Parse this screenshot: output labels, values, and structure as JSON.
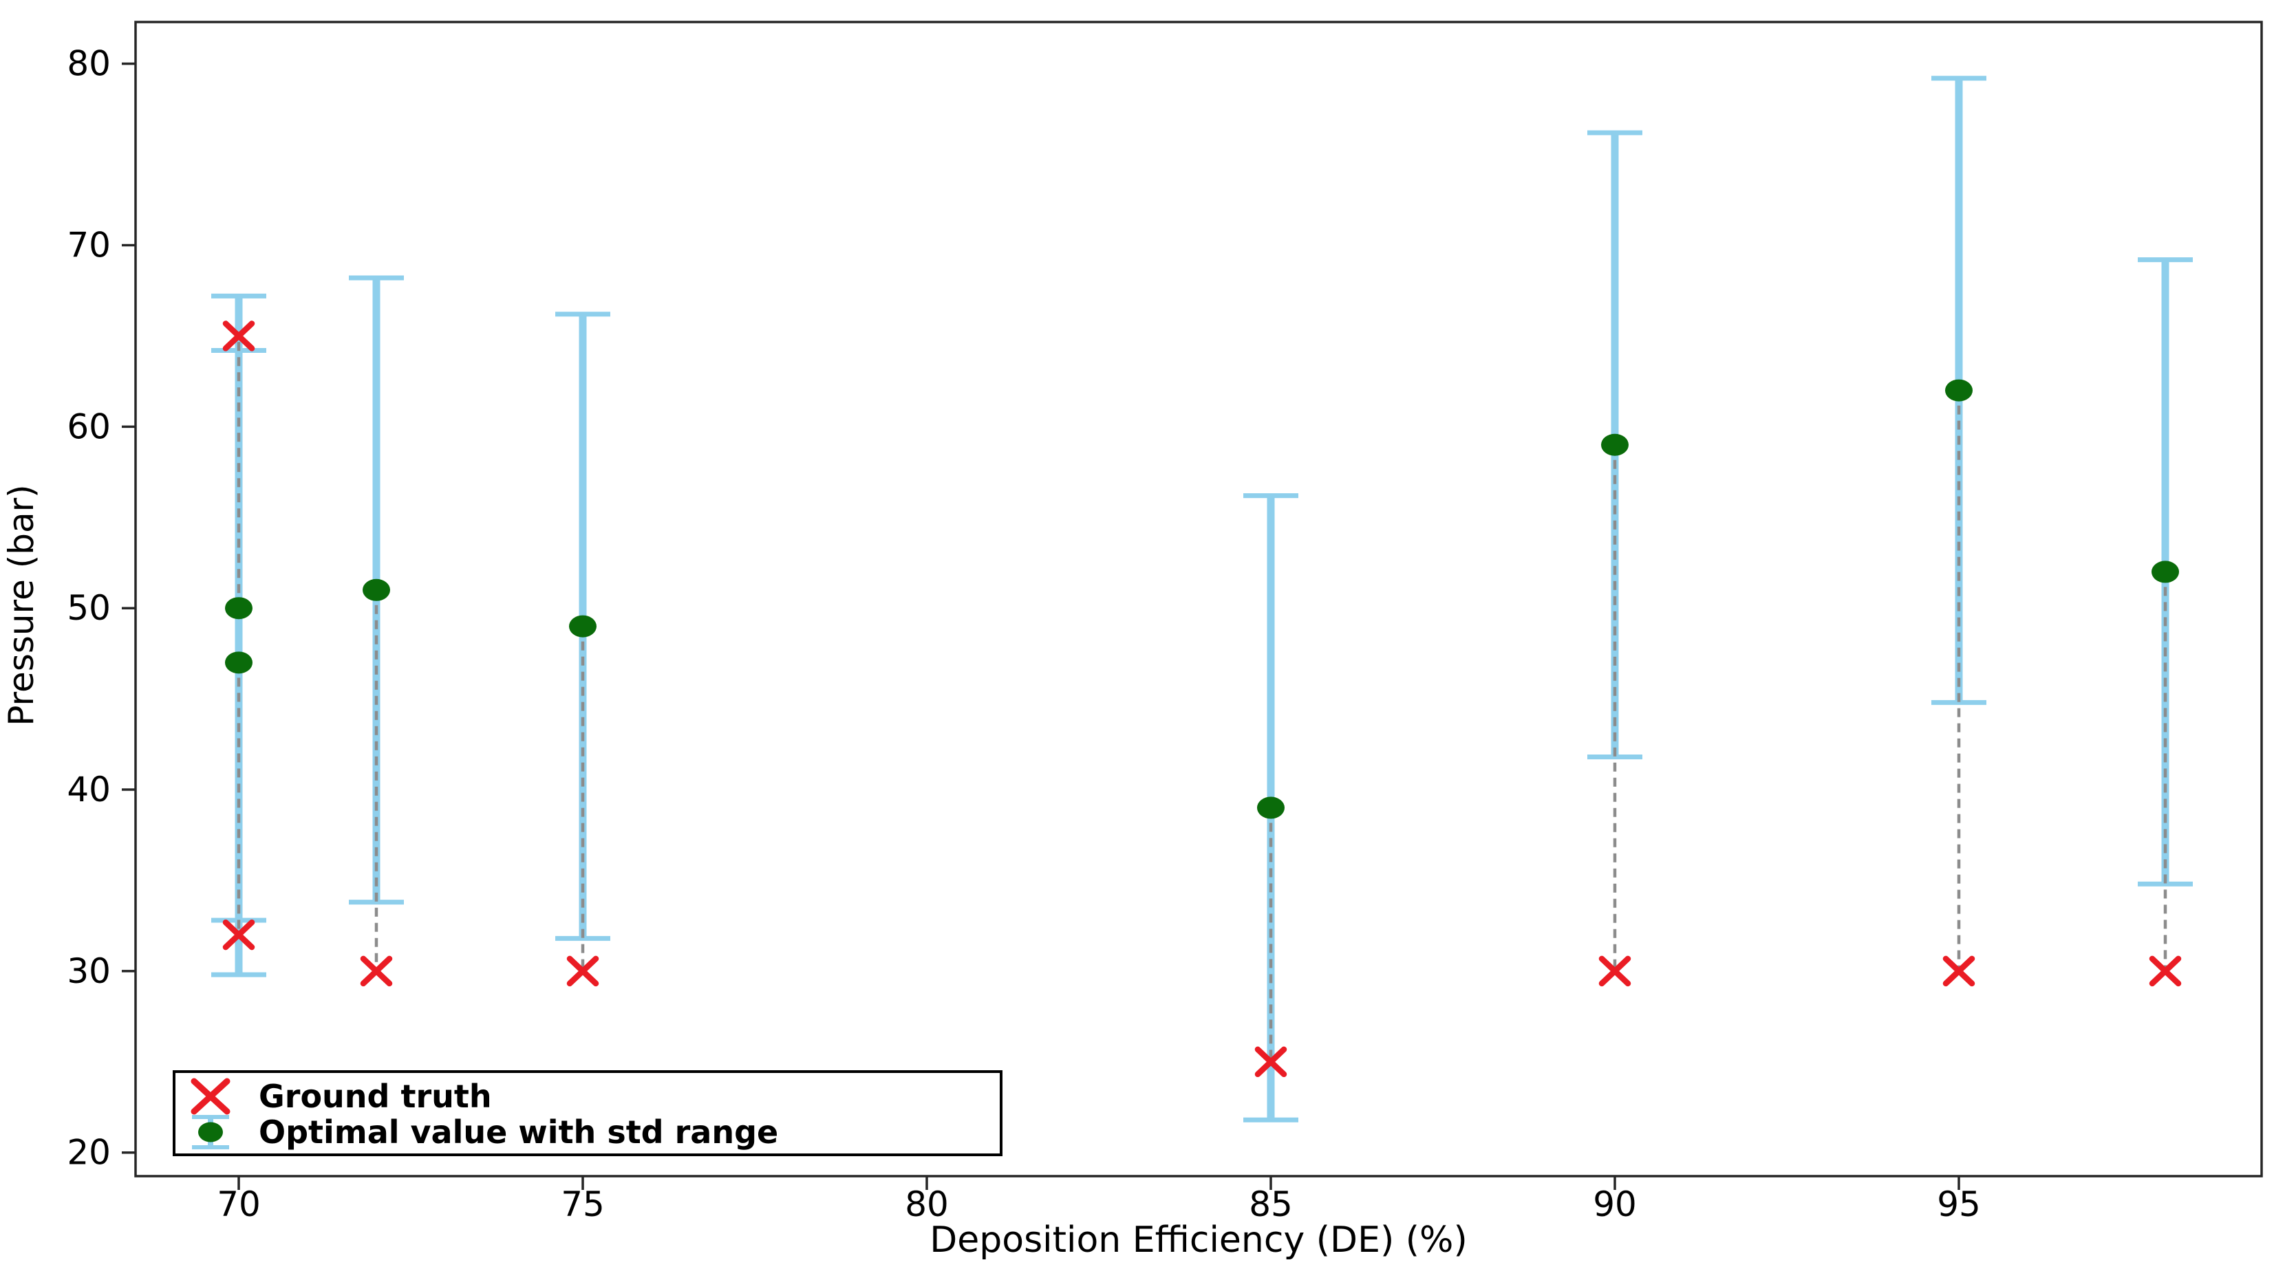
{
  "chart_data": {
    "type": "scatter",
    "title": "",
    "xlabel": "Deposition Efficiency (DE) (%)",
    "ylabel": "Pressure (bar)",
    "xlim": [
      68.5,
      99.4
    ],
    "ylim": [
      18.7,
      82.3
    ],
    "xticks": [
      70,
      75,
      80,
      85,
      90,
      95
    ],
    "yticks": [
      20,
      30,
      40,
      50,
      60,
      70,
      80
    ],
    "grid": false,
    "legend_position": "lower-left",
    "legend": [
      {
        "label": "Ground truth",
        "marker": "x-cross",
        "color": "#ea1c24"
      },
      {
        "label": "Optimal value with std range",
        "marker": "dot-with-error-bar",
        "color": "#0a6b0a"
      }
    ],
    "points": [
      {
        "de": 70,
        "optimal": 50,
        "std": 17.2,
        "lo": 32.8,
        "hi": 67.2,
        "ground_truth": 65
      },
      {
        "de": 70,
        "optimal": 47,
        "std": 17.2,
        "lo": 29.8,
        "hi": 64.2,
        "ground_truth": 32
      },
      {
        "de": 72,
        "optimal": 51,
        "std": 17.2,
        "lo": 33.8,
        "hi": 68.2,
        "ground_truth": 30
      },
      {
        "de": 75,
        "optimal": 49,
        "std": 17.2,
        "lo": 31.8,
        "hi": 66.2,
        "ground_truth": 30
      },
      {
        "de": 85,
        "optimal": 39,
        "std": 17.2,
        "lo": 21.8,
        "hi": 56.2,
        "ground_truth": 25
      },
      {
        "de": 90,
        "optimal": 59,
        "std": 17.2,
        "lo": 41.8,
        "hi": 76.2,
        "ground_truth": 30
      },
      {
        "de": 95,
        "optimal": 62,
        "std": 17.2,
        "lo": 44.8,
        "hi": 79.2,
        "ground_truth": 30
      },
      {
        "de": 98,
        "optimal": 52,
        "std": 17.2,
        "lo": 34.8,
        "hi": 69.2,
        "ground_truth": 30
      }
    ],
    "colors": {
      "error_bar": "#8ecfec",
      "optimal_marker": "#0a6b0a",
      "ground_truth_marker": "#ea1c24",
      "connector": "#8c8c8c",
      "spine": "#262626",
      "text": "#000000",
      "legend_border": "#000000",
      "background": "#ffffff"
    }
  }
}
